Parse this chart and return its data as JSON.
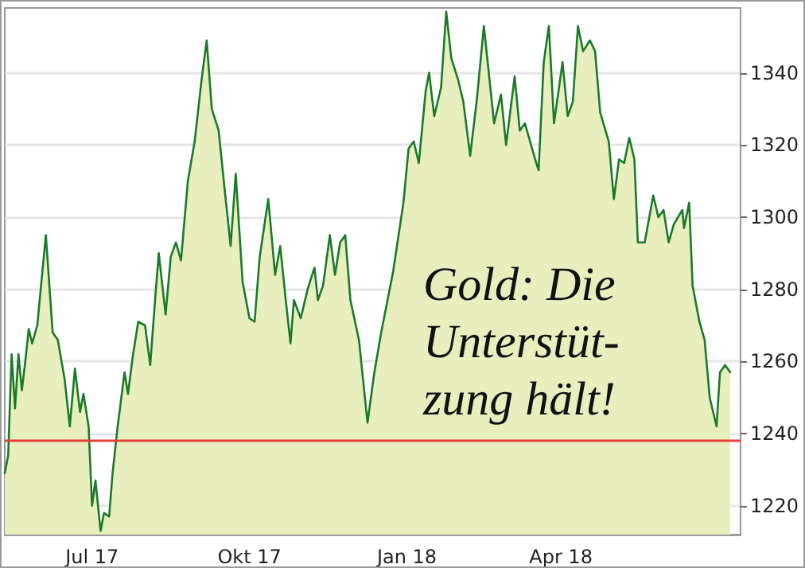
{
  "chart_data": {
    "type": "area",
    "annotations": [
      "Gold: Die\nUnterstüt-\nzung hält!"
    ],
    "x": [
      "2017-05-11",
      "2017-05-13",
      "2017-05-15",
      "2017-05-17",
      "2017-05-19",
      "2017-05-21",
      "2017-05-23",
      "2017-05-25",
      "2017-05-27",
      "2017-05-30",
      "2017-06-01",
      "2017-06-04",
      "2017-06-08",
      "2017-06-11",
      "2017-06-15",
      "2017-06-18",
      "2017-06-21",
      "2017-06-24",
      "2017-06-26",
      "2017-06-29",
      "2017-07-01",
      "2017-07-03",
      "2017-07-06",
      "2017-07-08",
      "2017-07-11",
      "2017-07-13",
      "2017-07-16",
      "2017-07-20",
      "2017-07-22",
      "2017-07-25",
      "2017-07-28",
      "2017-08-01",
      "2017-08-04",
      "2017-08-07",
      "2017-08-09",
      "2017-08-13",
      "2017-08-16",
      "2017-08-19",
      "2017-08-22",
      "2017-08-26",
      "2017-08-30",
      "2017-09-03",
      "2017-09-06",
      "2017-09-09",
      "2017-09-13",
      "2017-09-16",
      "2017-09-20",
      "2017-09-23",
      "2017-09-27",
      "2017-10-01",
      "2017-10-04",
      "2017-10-07",
      "2017-10-12",
      "2017-10-16",
      "2017-10-19",
      "2017-10-22",
      "2017-10-25",
      "2017-10-27",
      "2017-10-31",
      "2017-11-04",
      "2017-11-08",
      "2017-11-10",
      "2017-11-13",
      "2017-11-17",
      "2017-11-20",
      "2017-11-23",
      "2017-11-26",
      "2017-11-29",
      "2017-12-04",
      "2017-12-09",
      "2017-12-13",
      "2017-12-17",
      "2017-12-24",
      "2017-12-30",
      "2018-01-02",
      "2018-01-05",
      "2018-01-08",
      "2018-01-12",
      "2018-01-14",
      "2018-01-17",
      "2018-01-21",
      "2018-01-24",
      "2018-01-27",
      "2018-01-31",
      "2018-02-03",
      "2018-02-07",
      "2018-02-11",
      "2018-02-15",
      "2018-02-19",
      "2018-02-21",
      "2018-02-25",
      "2018-02-28",
      "2018-03-05",
      "2018-03-08",
      "2018-03-11",
      "2018-03-17",
      "2018-03-19",
      "2018-03-22",
      "2018-03-25",
      "2018-03-28",
      "2018-04-02",
      "2018-04-05",
      "2018-04-08",
      "2018-04-11",
      "2018-04-14",
      "2018-04-18",
      "2018-04-21",
      "2018-04-24",
      "2018-04-29",
      "2018-05-02",
      "2018-05-05",
      "2018-05-08",
      "2018-05-11",
      "2018-05-14",
      "2018-05-16",
      "2018-05-20",
      "2018-05-25",
      "2018-05-28",
      "2018-05-31",
      "2018-06-03",
      "2018-06-06",
      "2018-06-11",
      "2018-06-12",
      "2018-06-15",
      "2018-06-17",
      "2018-06-21",
      "2018-06-24",
      "2018-06-27",
      "2018-07-01",
      "2018-07-03",
      "2018-07-06",
      "2018-07-09"
    ],
    "series": [
      {
        "color": "#1a7a2a",
        "values": [
          1229,
          1234,
          1262,
          1247,
          1262,
          1252,
          1260,
          1269,
          1265,
          1270,
          1280,
          1295,
          1268,
          1266,
          1255,
          1242,
          1258,
          1246,
          1251,
          1242,
          1220,
          1227,
          1213,
          1218,
          1217,
          1229,
          1242,
          1257,
          1251,
          1262,
          1271,
          1270,
          1259,
          1278,
          1290,
          1273,
          1289,
          1293,
          1288,
          1310,
          1321,
          1338,
          1349,
          1330,
          1324,
          1310,
          1292,
          1312,
          1282,
          1272,
          1271,
          1289,
          1305,
          1284,
          1292,
          1278,
          1265,
          1277,
          1272,
          1280,
          1286,
          1277,
          1281,
          1295,
          1284,
          1293,
          1295,
          1277,
          1266,
          1243,
          1257,
          1268,
          1285,
          1304,
          1319,
          1321,
          1315,
          1335,
          1340,
          1328,
          1336,
          1357,
          1344,
          1338,
          1332,
          1317,
          1333,
          1353,
          1335,
          1326,
          1334,
          1320,
          1339,
          1324,
          1326,
          1316,
          1313,
          1343,
          1353,
          1326,
          1343,
          1328,
          1332,
          1353,
          1346,
          1349,
          1346,
          1329,
          1321,
          1305,
          1316,
          1315,
          1322,
          1316,
          1293,
          1293,
          1306,
          1300,
          1302,
          1293,
          1298,
          1302,
          1297,
          1304,
          1281,
          1271,
          1266,
          1250,
          1242,
          1257,
          1259,
          1257
        ]
      }
    ],
    "xlim": [
      "2017-05-11",
      "2018-07-15"
    ],
    "xticks": [
      {
        "value": "2017-07-01",
        "label": "Jul 17"
      },
      {
        "value": "2017-10-01",
        "label": "Okt 17"
      },
      {
        "value": "2018-01-01",
        "label": "Jan 18"
      },
      {
        "value": "2018-04-01",
        "label": "Apr 18"
      },
      {
        "value": "2018-07-01",
        "label": null
      }
    ],
    "ylim": [
      1212,
      1358
    ],
    "yticks": [
      1220,
      1240,
      1260,
      1280,
      1300,
      1320,
      1340
    ],
    "ref_lines": [
      {
        "axis": "y",
        "value": 1238,
        "color": "#e8403a"
      }
    ],
    "grid": "y",
    "marker": "none",
    "line_style": "solid"
  }
}
